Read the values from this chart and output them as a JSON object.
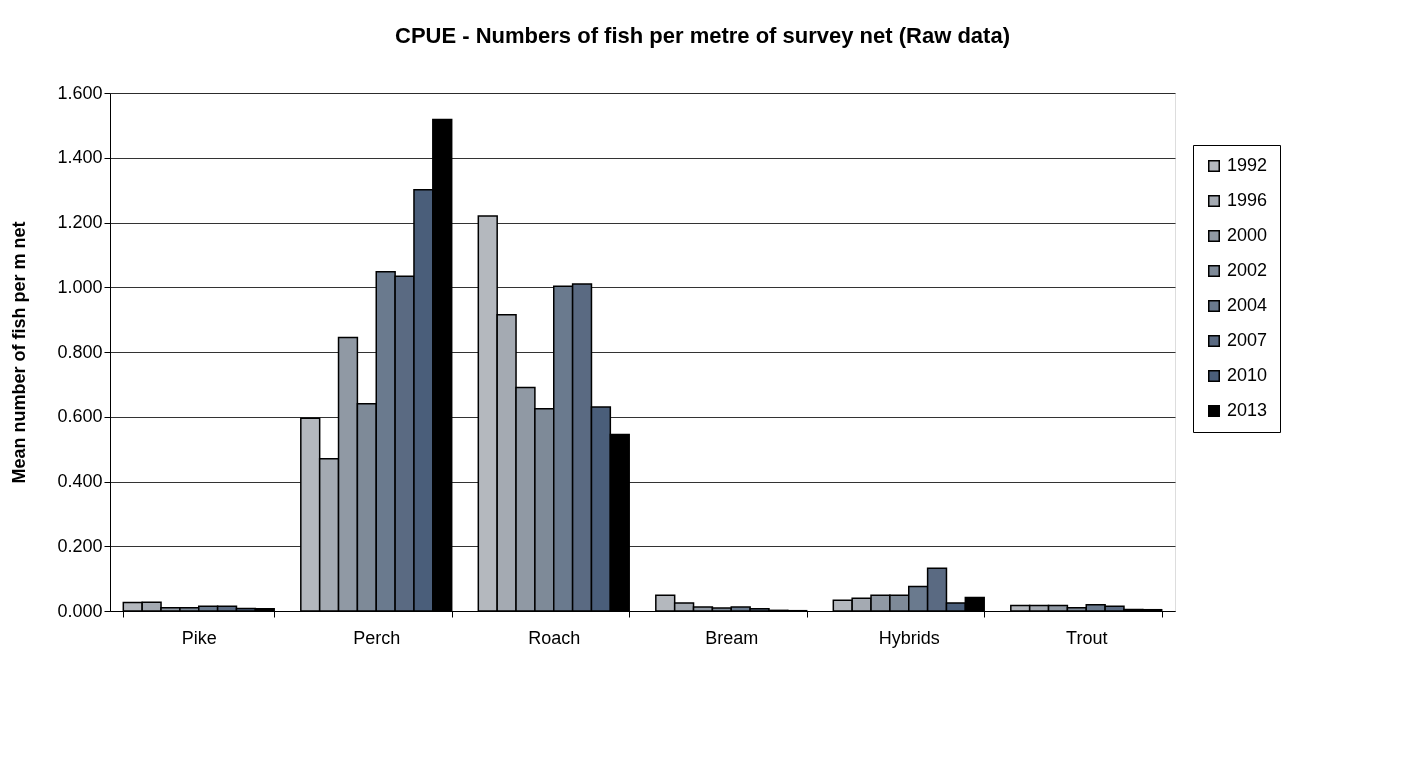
{
  "chart_data": {
    "type": "bar",
    "title": "CPUE - Numbers of fish per metre of survey net  (Raw data)",
    "ylabel": "Mean number of fish per m  net",
    "categories": [
      "Pike",
      "Perch",
      "Roach",
      "Bream",
      "Hybrids",
      "Trout"
    ],
    "series": [
      {
        "name": "1992",
        "color": "#b4b8be",
        "values": [
          0.026,
          0.595,
          1.22,
          0.049,
          0.033,
          0.017
        ]
      },
      {
        "name": "1996",
        "color": "#a4aab2",
        "values": [
          0.027,
          0.47,
          0.915,
          0.025,
          0.039,
          0.017
        ]
      },
      {
        "name": "2000",
        "color": "#9099a4",
        "values": [
          0.01,
          0.845,
          0.69,
          0.012,
          0.049,
          0.017
        ]
      },
      {
        "name": "2002",
        "color": "#7e8a98",
        "values": [
          0.01,
          0.64,
          0.625,
          0.009,
          0.049,
          0.01
        ]
      },
      {
        "name": "2004",
        "color": "#6a7a8e",
        "values": [
          0.015,
          1.048,
          1.003,
          0.012,
          0.076,
          0.019
        ]
      },
      {
        "name": "2007",
        "color": "#5a6a82",
        "values": [
          0.015,
          1.034,
          1.01,
          0.007,
          0.132,
          0.015
        ]
      },
      {
        "name": "2010",
        "color": "#4a5e7a",
        "values": [
          0.008,
          1.301,
          0.63,
          0.002,
          0.025,
          0.005
        ]
      },
      {
        "name": "2013",
        "color": "#000000",
        "values": [
          0.007,
          1.518,
          0.545,
          0.001,
          0.042,
          0.004
        ]
      }
    ],
    "ylim": [
      0,
      1.6
    ],
    "yticks": [
      {
        "value": 0,
        "label": "0.000"
      },
      {
        "value": 0.2,
        "label": "0.200"
      },
      {
        "value": 0.4,
        "label": "0.400"
      },
      {
        "value": 0.6,
        "label": "0.600"
      },
      {
        "value": 0.8,
        "label": "0.800"
      },
      {
        "value": 1.0,
        "label": "1.000"
      },
      {
        "value": 1.2,
        "label": "1.200"
      },
      {
        "value": 1.4,
        "label": "1.400"
      },
      {
        "value": 1.6,
        "label": "1.600"
      }
    ],
    "grid": "y",
    "legend": "right"
  }
}
